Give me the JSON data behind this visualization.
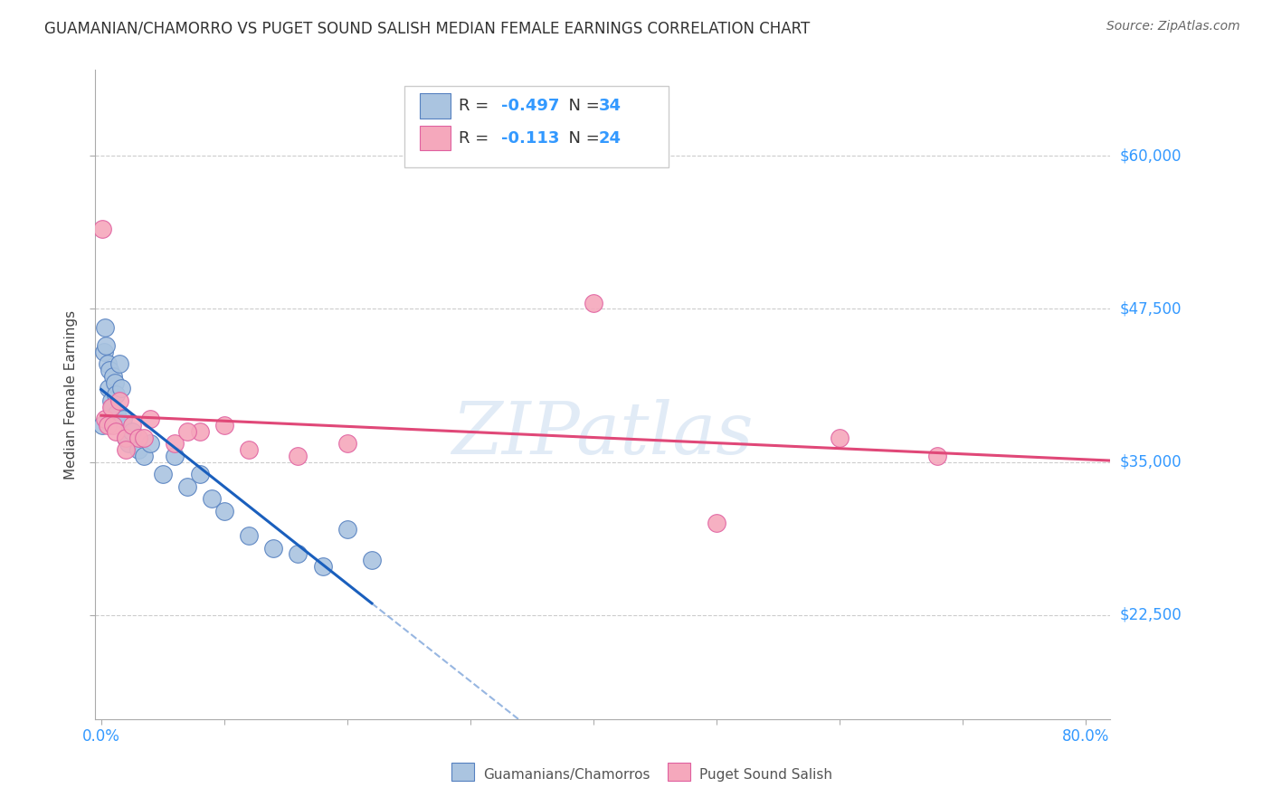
{
  "title": "GUAMANIAN/CHAMORRO VS PUGET SOUND SALISH MEDIAN FEMALE EARNINGS CORRELATION CHART",
  "source": "Source: ZipAtlas.com",
  "ylabel": "Median Female Earnings",
  "yticks": [
    22500,
    35000,
    47500,
    60000
  ],
  "ytick_labels": [
    "$22,500",
    "$35,000",
    "$47,500",
    "$60,000"
  ],
  "xlim": [
    -0.005,
    0.82
  ],
  "ylim": [
    14000,
    67000
  ],
  "xtick_left_label": "0.0%",
  "xtick_right_label": "80.0%",
  "blue_label": "Guamanians/Chamorros",
  "pink_label": "Puget Sound Salish",
  "blue_color": "#aac4e0",
  "pink_color": "#f5a8bc",
  "blue_edge_color": "#5580c0",
  "pink_edge_color": "#e060a0",
  "blue_line_color": "#1a5fbd",
  "pink_line_color": "#e04878",
  "blue_scatter_x": [
    0.001,
    0.002,
    0.003,
    0.004,
    0.005,
    0.006,
    0.007,
    0.008,
    0.009,
    0.01,
    0.011,
    0.012,
    0.013,
    0.015,
    0.016,
    0.018,
    0.02,
    0.022,
    0.025,
    0.03,
    0.035,
    0.04,
    0.05,
    0.06,
    0.07,
    0.08,
    0.09,
    0.1,
    0.12,
    0.14,
    0.16,
    0.18,
    0.2,
    0.22
  ],
  "blue_scatter_y": [
    38000,
    44000,
    46000,
    44500,
    43000,
    41000,
    42500,
    40000,
    39500,
    42000,
    41500,
    40500,
    39000,
    43000,
    41000,
    38500,
    37000,
    36500,
    37500,
    36000,
    35500,
    36500,
    34000,
    35500,
    33000,
    34000,
    32000,
    31000,
    29000,
    28000,
    27500,
    26500,
    29500,
    27000
  ],
  "pink_scatter_x": [
    0.001,
    0.003,
    0.005,
    0.008,
    0.01,
    0.012,
    0.015,
    0.02,
    0.025,
    0.03,
    0.04,
    0.06,
    0.08,
    0.1,
    0.12,
    0.16,
    0.2,
    0.4,
    0.5,
    0.6,
    0.68,
    0.02,
    0.035,
    0.07
  ],
  "pink_scatter_y": [
    54000,
    38500,
    38000,
    39500,
    38000,
    37500,
    40000,
    37000,
    38000,
    37000,
    38500,
    36500,
    37500,
    38000,
    36000,
    35500,
    36500,
    48000,
    30000,
    37000,
    35500,
    36000,
    37000,
    37500
  ],
  "background_color": "#ffffff",
  "grid_color": "#cccccc",
  "watermark": "ZIPatlas",
  "legend_fontsize": 13,
  "title_fontsize": 12,
  "axis_label_fontsize": 11,
  "tick_fontsize": 12,
  "tick_color": "#3399ff",
  "R_value_color": "#3399ff",
  "blue_line_solid_end": 0.22,
  "blue_line_dashed_end": 0.5,
  "pink_line_end": 0.82
}
